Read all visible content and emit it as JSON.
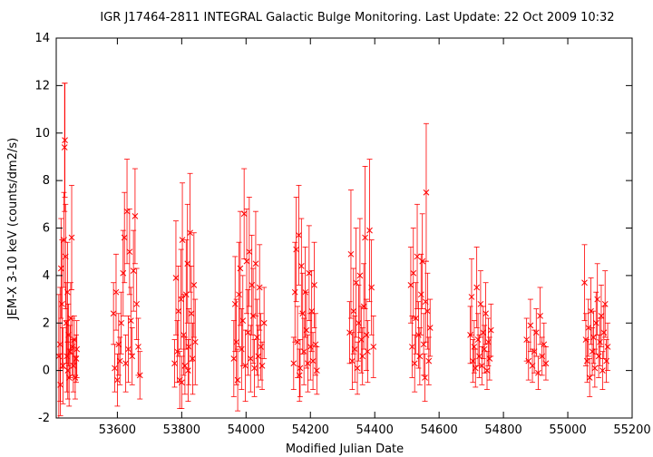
{
  "chart_data": {
    "type": "scatter",
    "title": "IGR J17464-2811   INTEGRAL Galactic Bulge Monitoring.  Last Update: 22 Oct 2009 10:32",
    "xlabel": "Modified Julian Date",
    "ylabel": "JEM-X 3-10 keV (counts/dm2/s)",
    "xlim": [
      53410,
      55200
    ],
    "ylim": [
      -2,
      14
    ],
    "x_ticks": [
      "53600",
      "53800",
      "54000",
      "54200",
      "54400",
      "54600",
      "54800",
      "55000",
      "55200"
    ],
    "y_ticks": [
      "-2",
      "0",
      "2",
      "4",
      "6",
      "8",
      "10",
      "12",
      "14"
    ],
    "marker": "x",
    "error_bars": true,
    "grid": false,
    "color": "#ff0000",
    "visibility_windows": [
      {
        "mjd": [
          53415,
          53475
        ],
        "points": [
          [
            53418,
            0.6,
            2.6
          ],
          [
            53422,
            1.1,
            2.4
          ],
          [
            53425,
            4.3,
            2.1
          ],
          [
            53428,
            2.8,
            2.7
          ],
          [
            53431,
            0.2,
            1.6
          ],
          [
            53434,
            5.5,
            2.0
          ],
          [
            53436,
            9.4,
            2.7
          ],
          [
            53437,
            9.7,
            2.4
          ],
          [
            53439,
            4.8,
            2.2
          ],
          [
            53441,
            2.0,
            1.7
          ],
          [
            53443,
            0.6,
            1.5
          ],
          [
            53445,
            3.3,
            2.1
          ],
          [
            53448,
            1.5,
            1.3
          ],
          [
            53450,
            -0.3,
            1.2
          ],
          [
            53453,
            0.8,
            1.1
          ],
          [
            53455,
            2.2,
            1.5
          ],
          [
            53458,
            5.6,
            2.2
          ],
          [
            53460,
            1.0,
            1.2
          ],
          [
            53463,
            0.2,
            1.1
          ],
          [
            53466,
            1.3,
            1.0
          ],
          [
            53469,
            -0.3,
            0.9
          ],
          [
            53472,
            0.5,
            1.0
          ],
          [
            53474,
            0.9,
            1.2
          ],
          [
            53423,
            -0.6,
            1.3
          ],
          [
            53446,
            0.0,
            1.2
          ]
        ]
      },
      {
        "mjd": [
          53585,
          53675
        ],
        "points": [
          [
            53588,
            2.4,
            1.3
          ],
          [
            53592,
            0.1,
            1.0
          ],
          [
            53596,
            3.3,
            1.6
          ],
          [
            53600,
            -0.4,
            1.1
          ],
          [
            53604,
            1.1,
            1.3
          ],
          [
            53608,
            0.4,
            1.0
          ],
          [
            53612,
            2.0,
            1.3
          ],
          [
            53618,
            4.1,
            1.8
          ],
          [
            53622,
            5.6,
            1.9
          ],
          [
            53626,
            0.3,
            1.2
          ],
          [
            53630,
            6.7,
            2.2
          ],
          [
            53634,
            0.9,
            1.4
          ],
          [
            53638,
            5.0,
            1.8
          ],
          [
            53642,
            2.1,
            1.4
          ],
          [
            53646,
            0.6,
            1.2
          ],
          [
            53650,
            4.2,
            1.7
          ],
          [
            53655,
            6.5,
            2.0
          ],
          [
            53660,
            2.8,
            1.5
          ],
          [
            53665,
            1.0,
            1.2
          ],
          [
            53670,
            -0.2,
            1.0
          ]
        ]
      },
      {
        "mjd": [
          53775,
          53845
        ],
        "points": [
          [
            53778,
            0.3,
            1.0
          ],
          [
            53782,
            3.9,
            2.4
          ],
          [
            53786,
            0.8,
            1.3
          ],
          [
            53790,
            2.5,
            1.9
          ],
          [
            53794,
            -0.4,
            1.2
          ],
          [
            53798,
            3.0,
            2.1
          ],
          [
            53802,
            5.5,
            2.4
          ],
          [
            53806,
            1.5,
            1.7
          ],
          [
            53810,
            0.2,
            1.2
          ],
          [
            53814,
            3.2,
            2.3
          ],
          [
            53818,
            4.5,
            2.5
          ],
          [
            53822,
            1.0,
            1.6
          ],
          [
            53826,
            5.8,
            2.5
          ],
          [
            53830,
            2.4,
            2.0
          ],
          [
            53834,
            0.5,
            1.5
          ],
          [
            53838,
            3.6,
            2.2
          ],
          [
            53842,
            1.2,
            1.8
          ],
          [
            53800,
            -0.5,
            1.1
          ],
          [
            53820,
            0.0,
            1.3
          ]
        ]
      },
      {
        "mjd": [
          53960,
          54060
        ],
        "points": [
          [
            53962,
            0.5,
            1.6
          ],
          [
            53966,
            2.8,
            2.0
          ],
          [
            53970,
            1.2,
            1.8
          ],
          [
            53974,
            -0.4,
            1.3
          ],
          [
            53978,
            3.2,
            2.2
          ],
          [
            53982,
            4.3,
            2.4
          ],
          [
            53986,
            0.9,
            1.7
          ],
          [
            53990,
            2.1,
            1.9
          ],
          [
            53994,
            6.6,
            1.9
          ],
          [
            53998,
            0.2,
            1.5
          ],
          [
            54002,
            4.6,
            2.2
          ],
          [
            54006,
            1.6,
            1.8
          ],
          [
            54010,
            5.0,
            2.3
          ],
          [
            54014,
            0.5,
            1.4
          ],
          [
            54018,
            3.6,
            2.1
          ],
          [
            54022,
            2.3,
            2.0
          ],
          [
            54026,
            0.1,
            1.2
          ],
          [
            54030,
            4.5,
            2.2
          ],
          [
            54034,
            1.4,
            1.6
          ],
          [
            54038,
            0.6,
            1.3
          ],
          [
            54042,
            3.5,
            1.8
          ],
          [
            54046,
            1.0,
            1.4
          ],
          [
            54050,
            0.2,
            1.0
          ],
          [
            54056,
            2.0,
            1.5
          ]
        ]
      },
      {
        "mjd": [
          54145,
          54225
        ],
        "points": [
          [
            54148,
            0.3,
            1.1
          ],
          [
            54152,
            3.3,
            2.1
          ],
          [
            54156,
            5.1,
            2.2
          ],
          [
            54160,
            1.2,
            1.5
          ],
          [
            54164,
            5.7,
            2.1
          ],
          [
            54168,
            0.1,
            1.2
          ],
          [
            54172,
            4.4,
            2.0
          ],
          [
            54176,
            2.4,
            1.7
          ],
          [
            54180,
            0.8,
            1.4
          ],
          [
            54184,
            3.3,
            1.9
          ],
          [
            54188,
            1.7,
            1.6
          ],
          [
            54192,
            0.3,
            1.2
          ],
          [
            54196,
            4.1,
            2.0
          ],
          [
            54200,
            1.0,
            1.4
          ],
          [
            54204,
            2.5,
            1.7
          ],
          [
            54208,
            0.4,
            1.2
          ],
          [
            54212,
            3.6,
            1.8
          ],
          [
            54216,
            1.1,
            1.3
          ],
          [
            54220,
            0.0,
            1.0
          ],
          [
            54166,
            -0.2,
            1.1
          ]
        ]
      },
      {
        "mjd": [
          54320,
          54400
        ],
        "points": [
          [
            54322,
            1.6,
            1.3
          ],
          [
            54326,
            4.9,
            2.7
          ],
          [
            54330,
            0.4,
            1.2
          ],
          [
            54334,
            2.5,
            1.8
          ],
          [
            54338,
            0.9,
            1.4
          ],
          [
            54342,
            3.7,
            2.3
          ],
          [
            54346,
            0.1,
            1.1
          ],
          [
            54350,
            2.0,
            1.6
          ],
          [
            54354,
            4.0,
            2.4
          ],
          [
            54358,
            1.3,
            1.4
          ],
          [
            54362,
            0.6,
            1.2
          ],
          [
            54366,
            2.7,
            1.8
          ],
          [
            54370,
            5.6,
            3.0
          ],
          [
            54374,
            1.5,
            1.5
          ],
          [
            54378,
            0.8,
            1.3
          ],
          [
            54384,
            5.9,
            3.0
          ],
          [
            54390,
            3.5,
            2.0
          ],
          [
            54396,
            1.0,
            1.3
          ]
        ]
      },
      {
        "mjd": [
          54510,
          54575
        ],
        "points": [
          [
            54512,
            3.6,
            1.6
          ],
          [
            54516,
            1.0,
            1.3
          ],
          [
            54520,
            4.1,
            1.9
          ],
          [
            54524,
            0.3,
            1.2
          ],
          [
            54528,
            2.2,
            1.5
          ],
          [
            54532,
            4.8,
            2.2
          ],
          [
            54536,
            1.5,
            1.4
          ],
          [
            54540,
            0.6,
            1.2
          ],
          [
            54544,
            3.2,
            1.7
          ],
          [
            54548,
            4.6,
            2.0
          ],
          [
            54552,
            1.1,
            1.3
          ],
          [
            54556,
            -0.3,
            1.0
          ],
          [
            54560,
            7.5,
            2.9
          ],
          [
            54564,
            2.5,
            1.6
          ],
          [
            54568,
            0.4,
            1.0
          ],
          [
            54572,
            1.8,
            1.2
          ],
          [
            54558,
            2.9,
            1.7
          ]
        ]
      },
      {
        "mjd": [
          54695,
          54765
        ],
        "points": [
          [
            54697,
            1.5,
            1.2
          ],
          [
            54701,
            3.1,
            1.6
          ],
          [
            54705,
            0.4,
            0.9
          ],
          [
            54709,
            1.0,
            1.1
          ],
          [
            54713,
            0.1,
            0.8
          ],
          [
            54717,
            3.5,
            1.7
          ],
          [
            54721,
            1.3,
            1.1
          ],
          [
            54725,
            0.6,
            0.9
          ],
          [
            54729,
            2.8,
            1.4
          ],
          [
            54733,
            0.2,
            0.8
          ],
          [
            54737,
            1.6,
            1.1
          ],
          [
            54741,
            0.9,
            1.0
          ],
          [
            54745,
            2.4,
            1.3
          ],
          [
            54749,
            0.0,
            0.8
          ],
          [
            54753,
            1.2,
            1.0
          ],
          [
            54757,
            0.5,
            0.9
          ],
          [
            54761,
            1.7,
            1.1
          ]
        ]
      },
      {
        "mjd": [
          54870,
          54935
        ],
        "points": [
          [
            54872,
            1.3,
            0.9
          ],
          [
            54878,
            0.4,
            0.8
          ],
          [
            54884,
            1.9,
            1.1
          ],
          [
            54890,
            0.2,
            0.7
          ],
          [
            54896,
            0.8,
            0.9
          ],
          [
            54902,
            1.6,
            1.0
          ],
          [
            54908,
            -0.1,
            0.7
          ],
          [
            54914,
            2.3,
            1.2
          ],
          [
            54920,
            0.6,
            0.8
          ],
          [
            54926,
            1.1,
            0.9
          ],
          [
            54932,
            0.3,
            0.7
          ]
        ]
      },
      {
        "mjd": [
          55050,
          55125
        ],
        "points": [
          [
            55052,
            3.7,
            1.6
          ],
          [
            55056,
            1.3,
            1.1
          ],
          [
            55060,
            0.4,
            0.9
          ],
          [
            55064,
            1.8,
            1.2
          ],
          [
            55068,
            -0.3,
            0.8
          ],
          [
            55072,
            2.5,
            1.4
          ],
          [
            55076,
            0.8,
            1.0
          ],
          [
            55080,
            1.4,
            1.1
          ],
          [
            55084,
            0.1,
            0.8
          ],
          [
            55088,
            2.0,
            1.3
          ],
          [
            55092,
            3.0,
            1.5
          ],
          [
            55096,
            0.6,
            0.9
          ],
          [
            55100,
            1.2,
            1.0
          ],
          [
            55104,
            2.3,
            1.3
          ],
          [
            55108,
            0.0,
            0.8
          ],
          [
            55112,
            1.6,
            1.1
          ],
          [
            55116,
            2.8,
            1.4
          ],
          [
            55120,
            0.4,
            0.9
          ],
          [
            55124,
            1.0,
            1.0
          ]
        ]
      }
    ]
  }
}
